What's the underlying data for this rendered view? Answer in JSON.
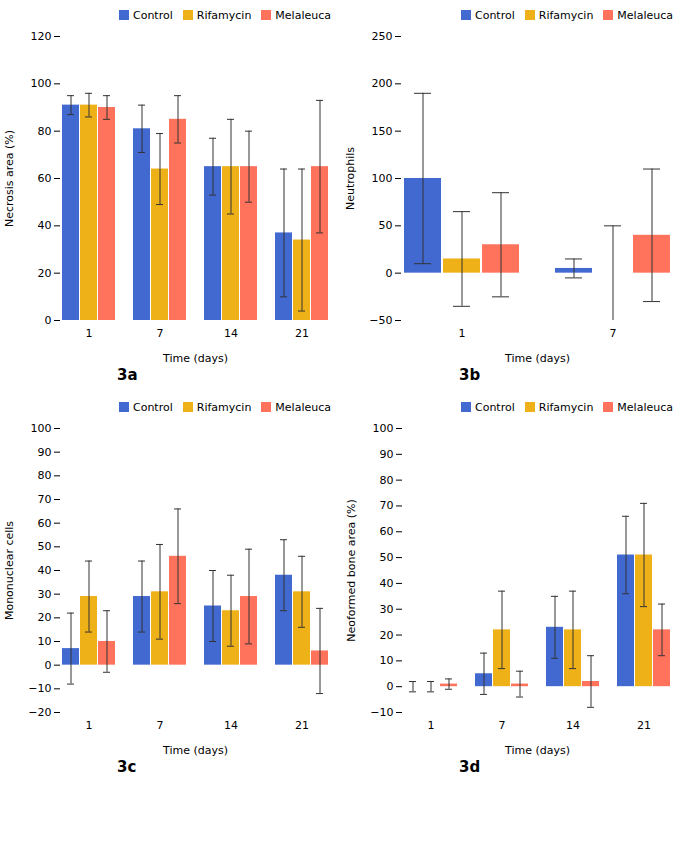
{
  "chart_data": [
    {
      "type": "bar",
      "title": "3a",
      "xlabel": "Time (days)",
      "ylabel": "Necrosis area (%)",
      "categories": [
        1,
        7,
        14,
        21
      ],
      "series": [
        {
          "name": "Control",
          "values": [
            91,
            81,
            65,
            37
          ],
          "errors": [
            4,
            10,
            12,
            27
          ]
        },
        {
          "name": "Rifamycin",
          "values": [
            91,
            64,
            65,
            34
          ],
          "errors": [
            5,
            15,
            20,
            30
          ]
        },
        {
          "name": "Melaleuca",
          "values": [
            90,
            85,
            65,
            65
          ],
          "errors": [
            5,
            10,
            15,
            28
          ]
        }
      ],
      "ylim": [
        0,
        120
      ],
      "yticks": [
        0,
        20,
        40,
        60,
        80,
        100,
        120
      ],
      "legend": "upper right",
      "grid": false
    },
    {
      "type": "bar",
      "title": "3b",
      "xlabel": "Time (days)",
      "ylabel": "Neutrophils",
      "categories": [
        1,
        7
      ],
      "series": [
        {
          "name": "Control",
          "values": [
            100,
            5
          ],
          "errors": [
            90,
            10
          ]
        },
        {
          "name": "Rifamycin",
          "values": [
            15,
            0
          ],
          "errors": [
            50,
            50
          ]
        },
        {
          "name": "Melaleuca",
          "values": [
            30,
            40
          ],
          "errors": [
            55,
            70
          ]
        }
      ],
      "ylim": [
        -50,
        250
      ],
      "yticks": [
        -50,
        0,
        50,
        100,
        150,
        200,
        250
      ],
      "legend": "upper right",
      "grid": false
    },
    {
      "type": "bar",
      "title": "3c",
      "xlabel": "Time (days)",
      "ylabel": "Mononuclear cells",
      "categories": [
        1,
        7,
        14,
        21
      ],
      "series": [
        {
          "name": "Control",
          "values": [
            7,
            29,
            25,
            38
          ],
          "errors": [
            15,
            15,
            15,
            15
          ]
        },
        {
          "name": "Rifamycin",
          "values": [
            29,
            31,
            23,
            31
          ],
          "errors": [
            15,
            20,
            15,
            15
          ]
        },
        {
          "name": "Melaleuca",
          "values": [
            10,
            46,
            29,
            6
          ],
          "errors": [
            13,
            20,
            20,
            18
          ]
        }
      ],
      "ylim": [
        -20,
        100
      ],
      "yticks": [
        -20,
        -10,
        0,
        10,
        20,
        30,
        40,
        50,
        60,
        70,
        80,
        90,
        100
      ],
      "legend": "upper right",
      "grid": false
    },
    {
      "type": "bar",
      "title": "3d",
      "xlabel": "Time (days)",
      "ylabel": "Neoformed bone area (%)",
      "categories": [
        1,
        7,
        14,
        21
      ],
      "series": [
        {
          "name": "Control",
          "values": [
            0,
            5,
            23,
            51
          ],
          "errors": [
            2,
            8,
            12,
            15
          ]
        },
        {
          "name": "Rifamycin",
          "values": [
            0,
            22,
            22,
            51
          ],
          "errors": [
            2,
            15,
            15,
            20
          ]
        },
        {
          "name": "Melaleuca",
          "values": [
            1,
            1,
            2,
            22
          ],
          "errors": [
            2,
            5,
            10,
            10
          ]
        }
      ],
      "ylim": [
        -10,
        100
      ],
      "yticks": [
        -10,
        0,
        10,
        20,
        30,
        40,
        50,
        60,
        70,
        80,
        90,
        100
      ],
      "legend": "upper right",
      "grid": false
    }
  ]
}
